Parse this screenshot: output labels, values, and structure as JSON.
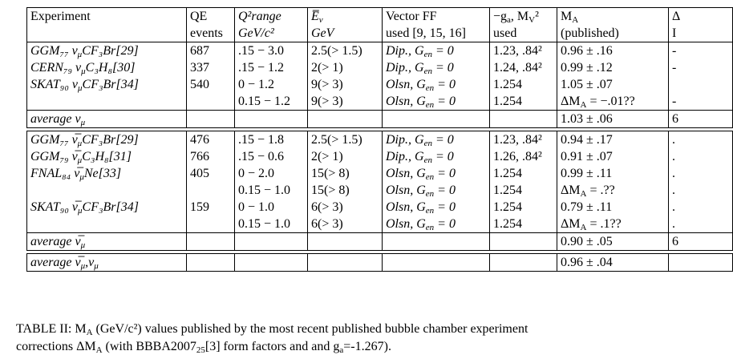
{
  "table": {
    "header": [
      [
        [
          "Experiment"
        ]
      ],
      [
        [
          "QE"
        ],
        [
          "events"
        ]
      ],
      [
        [
          "Q²range"
        ],
        [
          "GeV/c²"
        ]
      ],
      [
        [
          "E̅",
          "ν"
        ],
        [
          "GeV"
        ]
      ],
      [
        [
          "Vector FF"
        ],
        [
          "used [9, 15, 16]"
        ]
      ],
      [
        [
          "−g",
          "a",
          ", M",
          "V",
          "²"
        ],
        [
          "used"
        ]
      ],
      [
        [
          "M",
          "A"
        ],
        [
          "(published)"
        ]
      ],
      [
        [
          "Δ"
        ],
        [
          "I"
        ]
      ]
    ],
    "blocks": [
      {
        "rows": [
          [
            [
              "GGM₇₇ ν",
              "μ",
              "CF₃Br[29]"
            ],
            [
              "687"
            ],
            [
              ".15 − 3.0"
            ],
            [
              "2.5(> 1.5)"
            ],
            [
              "Dip., G",
              "en",
              " = 0"
            ],
            [
              "1.23, .84²"
            ],
            [
              "0.96 ± .16"
            ],
            [
              "-"
            ]
          ],
          [
            [
              "CERN₇₉ ν",
              "μ",
              "C₃H₈[30]"
            ],
            [
              "337"
            ],
            [
              ".15 − 1.2"
            ],
            [
              "2(> 1)"
            ],
            [
              "Dip., G",
              "en",
              " = 0"
            ],
            [
              "1.24, .84²"
            ],
            [
              "0.99 ± .12"
            ],
            [
              "-"
            ]
          ],
          [
            [
              "SKAT₉₀ ν",
              "μ",
              "CF₃Br[34]"
            ],
            [
              "540"
            ],
            [
              "0 − 1.2"
            ],
            [
              "9(> 3)"
            ],
            [
              "Olsn, G",
              "en",
              " = 0"
            ],
            [
              "1.254"
            ],
            [
              "1.05 ± .07"
            ],
            []
          ],
          [
            [],
            [],
            [
              "0.15 − 1.2"
            ],
            [
              "9(> 3)"
            ],
            [
              "Olsn, G",
              "en",
              " = 0"
            ],
            [
              "1.254"
            ],
            [
              "ΔM",
              "A",
              " = −.01??"
            ],
            [
              "-"
            ]
          ]
        ],
        "average": [
          [
            "average ν",
            "μ"
          ],
          [],
          [],
          [],
          [],
          [],
          [
            "1.03 ± .06"
          ],
          [
            "6"
          ]
        ]
      },
      {
        "rows": [
          [
            [
              "GGM₇₇ ν̅",
              "μ",
              "CF₃Br[29]"
            ],
            [
              "476"
            ],
            [
              ".15 − 1.8"
            ],
            [
              "2.5(> 1.5)"
            ],
            [
              "Dip., G",
              "en",
              " = 0"
            ],
            [
              "1.23, .84²"
            ],
            [
              "0.94 ± .17"
            ],
            [
              "."
            ]
          ],
          [
            [
              "GGM₇₉ ν̅",
              "μ",
              "C₃H₈[31]"
            ],
            [
              "766"
            ],
            [
              ".15 − 0.6"
            ],
            [
              "2(> 1)"
            ],
            [
              "Dip., G",
              "en",
              " = 0"
            ],
            [
              "1.26, .84²"
            ],
            [
              "0.91 ± .07"
            ],
            [
              "."
            ]
          ],
          [
            [
              "FNAL₈₄ ν̅",
              "μ",
              "Ne[33]"
            ],
            [
              "405"
            ],
            [
              "0 − 2.0"
            ],
            [
              "15(> 8)"
            ],
            [
              "Olsn, G",
              "en",
              " = 0"
            ],
            [
              "1.254"
            ],
            [
              "0.99 ± .11"
            ],
            [
              "."
            ]
          ],
          [
            [],
            [],
            [
              "0.15 − 1.0"
            ],
            [
              "15(> 8)"
            ],
            [
              "Olsn, G",
              "en",
              " = 0"
            ],
            [
              "1.254"
            ],
            [
              "ΔM",
              "A",
              " = .??"
            ],
            [
              "."
            ]
          ],
          [
            [
              "SKAT₉₀ ν̅",
              "μ",
              "CF₃Br[34]"
            ],
            [
              "159"
            ],
            [
              "0 − 1.0"
            ],
            [
              "6(> 3)"
            ],
            [
              "Olsn, G",
              "en",
              " = 0"
            ],
            [
              "1.254"
            ],
            [
              "0.79 ± .11"
            ],
            [
              "."
            ]
          ],
          [
            [],
            [],
            [
              "0.15 − 1.0"
            ],
            [
              "6(> 3)"
            ],
            [
              "Olsn, G",
              "en",
              " = 0"
            ],
            [
              "1.254"
            ],
            [
              "ΔM",
              "A",
              " = .1??"
            ],
            [
              "."
            ]
          ]
        ],
        "average": [
          [
            "average ν̅",
            "μ"
          ],
          [],
          [],
          [],
          [],
          [],
          [
            "0.90 ± .05"
          ],
          [
            "6"
          ]
        ]
      },
      {
        "rows": [],
        "average": [
          [
            "average ν̅",
            "μ",
            ",ν",
            "μ"
          ],
          [],
          [],
          [],
          [],
          [],
          [
            "0.96 ± .04"
          ],
          []
        ]
      }
    ]
  },
  "caption": [
    [
      "TABLE II: M",
      "A",
      " (GeV/c²) values published by the most recent published bubble chamber experiment"
    ],
    [
      "corrections ΔM",
      "A",
      " (with BBBA2007",
      "25",
      "[3] form factors and and g",
      "a",
      "=-1.267)."
    ]
  ]
}
